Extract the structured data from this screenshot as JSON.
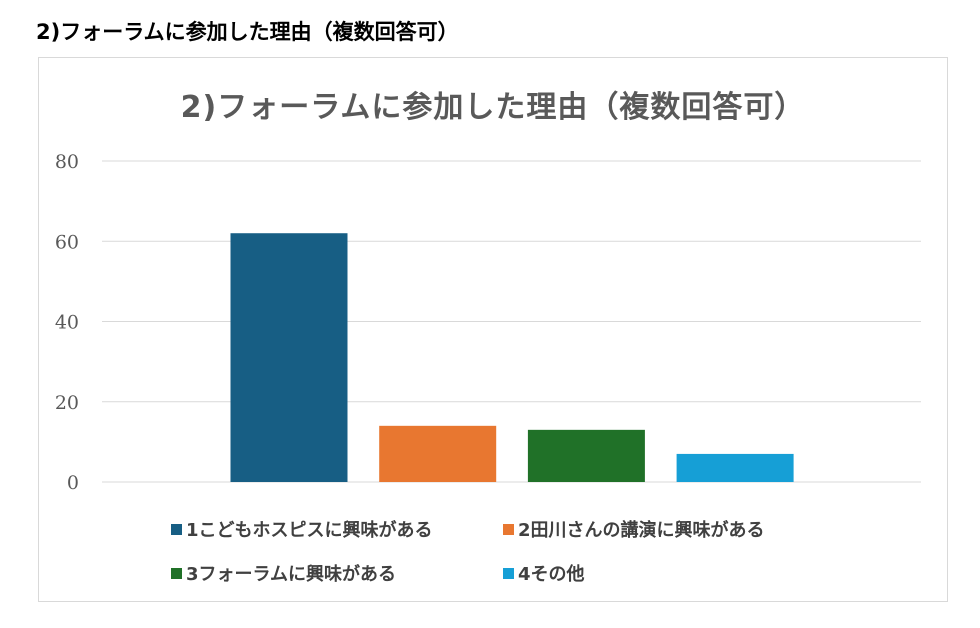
{
  "page": {
    "heading": "2)フォーラムに参加した理由（複数回答可）"
  },
  "colors": {
    "bar1": "#175e84",
    "bar2": "#e87730",
    "bar3": "#207128",
    "bar4": "#169fd6"
  },
  "chart_data": {
    "type": "bar",
    "title": "2)フォーラムに参加した理由（複数回答可）",
    "categories": [
      "1こどもホスピスに興味がある",
      "2田川さんの講演に興味がある",
      "3フォーラムに興味がある",
      "4その他"
    ],
    "values": [
      62,
      14,
      13,
      7
    ],
    "ylim": [
      0,
      80
    ],
    "yticks": [
      "0",
      "20",
      "40",
      "60",
      "80"
    ],
    "grid": true,
    "legend_position": "bottom"
  }
}
